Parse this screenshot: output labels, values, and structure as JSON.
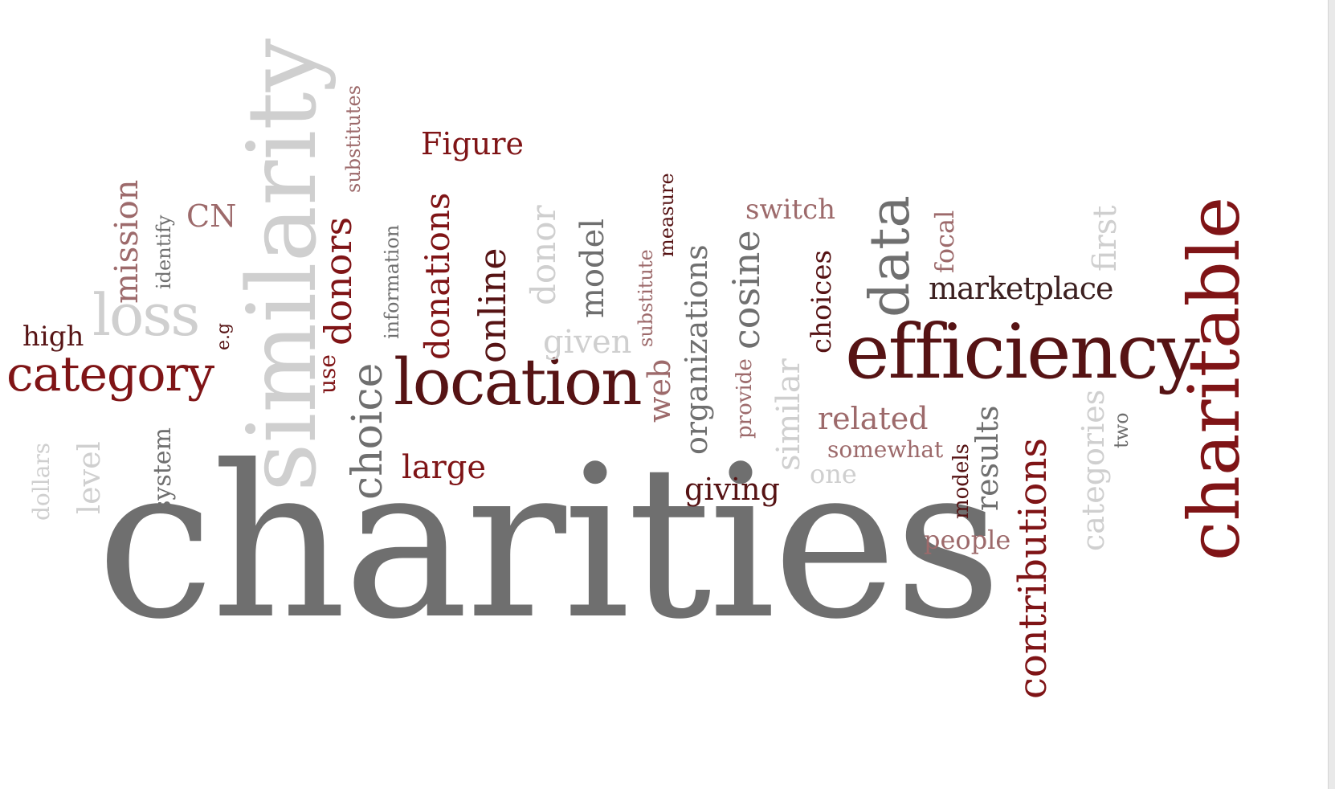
{
  "word_cloud": {
    "words": [
      {
        "text": "charities",
        "color": "#6f6f6f"
      },
      {
        "text": "similarity",
        "color": "#cfcfcf"
      },
      {
        "text": "efficiency",
        "color": "#561314"
      },
      {
        "text": "charitable",
        "color": "#7f1416"
      },
      {
        "text": "location",
        "color": "#561314"
      },
      {
        "text": "category",
        "color": "#7f1416"
      },
      {
        "text": "contributions",
        "color": "#7f1416"
      },
      {
        "text": "data",
        "color": "#6f6f6f"
      },
      {
        "text": "loss",
        "color": "#cfcfcf"
      },
      {
        "text": "choice",
        "color": "#6f6f6f"
      },
      {
        "text": "donors",
        "color": "#7f1416"
      },
      {
        "text": "donations",
        "color": "#7f1416"
      },
      {
        "text": "online",
        "color": "#561314"
      },
      {
        "text": "marketplace",
        "color": "#3c2020"
      },
      {
        "text": "organizations",
        "color": "#6f6f6f"
      },
      {
        "text": "cosine",
        "color": "#6f6f6f"
      },
      {
        "text": "mission",
        "color": "#9d6a6b"
      },
      {
        "text": "Figure",
        "color": "#7f1416"
      },
      {
        "text": "CN",
        "color": "#9d6a6b"
      },
      {
        "text": "donor",
        "color": "#cfcfcf"
      },
      {
        "text": "model",
        "color": "#6f6f6f"
      },
      {
        "text": "high",
        "color": "#561314"
      },
      {
        "text": "level",
        "color": "#cfcfcf"
      },
      {
        "text": "dollars",
        "color": "#cfcfcf"
      },
      {
        "text": "system",
        "color": "#6f6f6f"
      },
      {
        "text": "identify",
        "color": "#6f6f6f"
      },
      {
        "text": "e.g",
        "color": "#561314"
      },
      {
        "text": "substitutes",
        "color": "#9d6a6b"
      },
      {
        "text": "information",
        "color": "#6f6f6f"
      },
      {
        "text": "use",
        "color": "#7f1416"
      },
      {
        "text": "large",
        "color": "#7f1416"
      },
      {
        "text": "given",
        "color": "#cfcfcf"
      },
      {
        "text": "web",
        "color": "#9d6a6b"
      },
      {
        "text": "substitute",
        "color": "#9d6a6b"
      },
      {
        "text": "measure",
        "color": "#561314"
      },
      {
        "text": "switch",
        "color": "#9d6a6b"
      },
      {
        "text": "provide",
        "color": "#9d6a6b"
      },
      {
        "text": "similar",
        "color": "#cfcfcf"
      },
      {
        "text": "giving",
        "color": "#561314"
      },
      {
        "text": "choices",
        "color": "#561314"
      },
      {
        "text": "related",
        "color": "#9d6a6b"
      },
      {
        "text": "somewhat",
        "color": "#9d6a6b"
      },
      {
        "text": "one",
        "color": "#cfcfcf"
      },
      {
        "text": "focal",
        "color": "#9d6a6b"
      },
      {
        "text": "first",
        "color": "#cfcfcf"
      },
      {
        "text": "results",
        "color": "#6f6f6f"
      },
      {
        "text": "models",
        "color": "#561314"
      },
      {
        "text": "people",
        "color": "#9d6a6b"
      },
      {
        "text": "categories",
        "color": "#cfcfcf"
      },
      {
        "text": "two",
        "color": "#6f6f6f"
      }
    ]
  }
}
